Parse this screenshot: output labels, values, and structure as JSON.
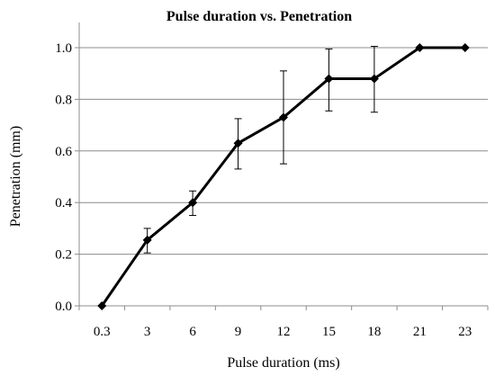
{
  "chart_data": {
    "type": "line",
    "title": "Pulse duration vs. Penetration",
    "xlabel": "Pulse duration (ms)",
    "ylabel": "Penetration (mm)",
    "categories": [
      "0.3",
      "3",
      "6",
      "9",
      "12",
      "15",
      "18",
      "21",
      "23"
    ],
    "series": [
      {
        "values": [
          0.0,
          0.255,
          0.4,
          0.63,
          0.73,
          0.88,
          0.88,
          1.0,
          1.0
        ],
        "err_plus": [
          0.0,
          0.045,
          0.045,
          0.095,
          0.18,
          0.115,
          0.125,
          0.0,
          0.0
        ],
        "err_minus": [
          0.0,
          0.05,
          0.05,
          0.1,
          0.18,
          0.125,
          0.13,
          0.0,
          0.0
        ]
      }
    ],
    "ylim": [
      0,
      1.0
    ],
    "yticks": [
      "0.0",
      "0.2",
      "0.4",
      "0.6",
      "0.8",
      "1.0"
    ],
    "grid": "horizontal",
    "legend": "none",
    "line_color": "#000000",
    "marker": "diamond"
  }
}
